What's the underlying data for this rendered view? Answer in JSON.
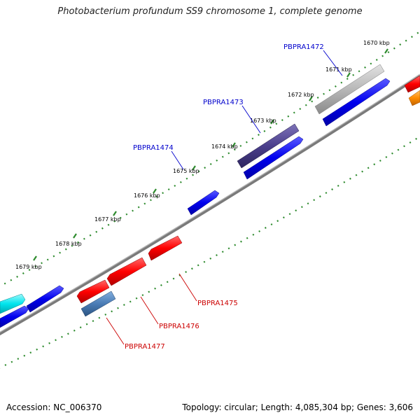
{
  "title": "Photobacterium profundum SS9 chromosome 1, complete genome",
  "footer": {
    "accession": "Accession: NC_006370",
    "topology": "Topology: circular; Length: 4,085,304 bp; Genes: 3,606"
  },
  "ticks": [
    "1670 kbp",
    "1671 kbp",
    "1672 kbp",
    "1673 kbp",
    "1674 kbp",
    "1675 kbp",
    "1676 kbp",
    "1677 kbp",
    "1678 kbp",
    "1679 kbp"
  ],
  "labels": {
    "PBPRA1472": "PBPRA1472",
    "PBPRA1473": "PBPRA1473",
    "PBPRA1474": "PBPRA1474",
    "PBPRA1475": "PBPRA1475",
    "PBPRA1476": "PBPRA1476",
    "PBPRA1477": "PBPRA1477"
  },
  "colors": {
    "backbone": "#7a7a7a",
    "tickTrack": "#2e8b2e",
    "forwardGene": "#0000ee",
    "reverseGene": "#ff0000",
    "forwardLabel": "#0000cc",
    "reverseLabel": "#cc0000",
    "grayGene": "#b4b4b4",
    "purpleGene": "#4b3f8c",
    "steelGene": "#4a7cb5",
    "cyanGene": "#00e5ee",
    "orangeGene": "#ff8c00"
  }
}
